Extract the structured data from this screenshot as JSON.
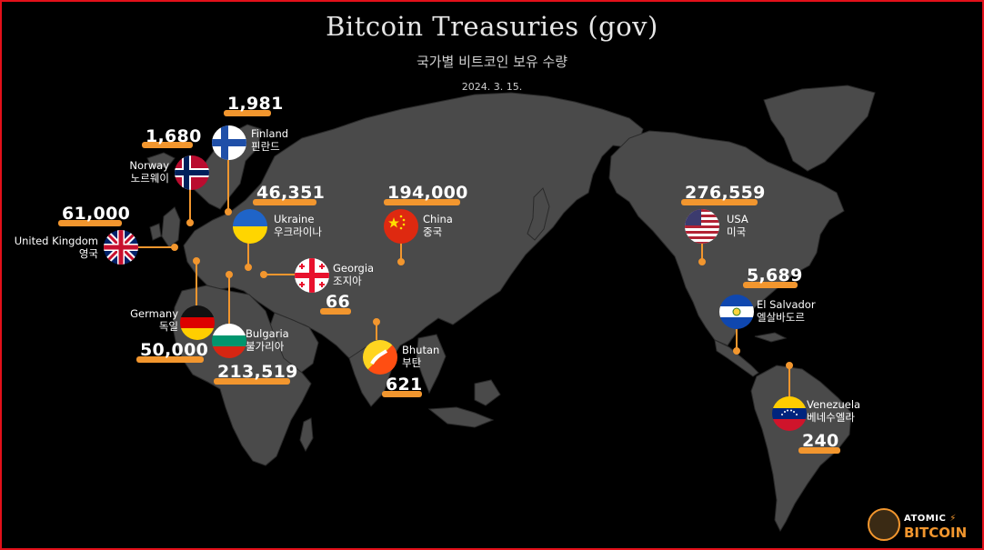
{
  "title": "Bitcoin Treasuries (gov)",
  "subtitle": "국가별 비트코인 보유 수량",
  "date": "2024. 3. 15.",
  "accent_color": "#f2962e",
  "land_color": "#4a4a4a",
  "countries": {
    "finland": {
      "name": "Finland",
      "name_ko": "핀란드",
      "value": "1,981"
    },
    "norway": {
      "name": "Norway",
      "name_ko": "노르웨이",
      "value": "1,680"
    },
    "uk": {
      "name": "United Kingdom",
      "name_ko": "영국",
      "value": "61,000"
    },
    "ukraine": {
      "name": "Ukraine",
      "name_ko": "우크라이나",
      "value": "46,351"
    },
    "georgia": {
      "name": "Georgia",
      "name_ko": "조지아",
      "value": "66"
    },
    "germany": {
      "name": "Germany",
      "name_ko": "독일",
      "value": "50,000"
    },
    "bulgaria": {
      "name": "Bulgaria",
      "name_ko": "불가리아",
      "value": "213,519"
    },
    "china": {
      "name": "China",
      "name_ko": "중국",
      "value": "194,000"
    },
    "bhutan": {
      "name": "Bhutan",
      "name_ko": "부탄",
      "value": "621"
    },
    "usa": {
      "name": "USA",
      "name_ko": "미국",
      "value": "276,559"
    },
    "el_salvador": {
      "name": "El Salvador",
      "name_ko": "엘살바도르",
      "value": "5,689"
    },
    "venezuela": {
      "name": "Venezuela",
      "name_ko": "베네수엘라",
      "value": "240"
    }
  },
  "logo": {
    "top": "ATOMIC",
    "bolt": "⚡",
    "bottom": "BITCOIN"
  }
}
